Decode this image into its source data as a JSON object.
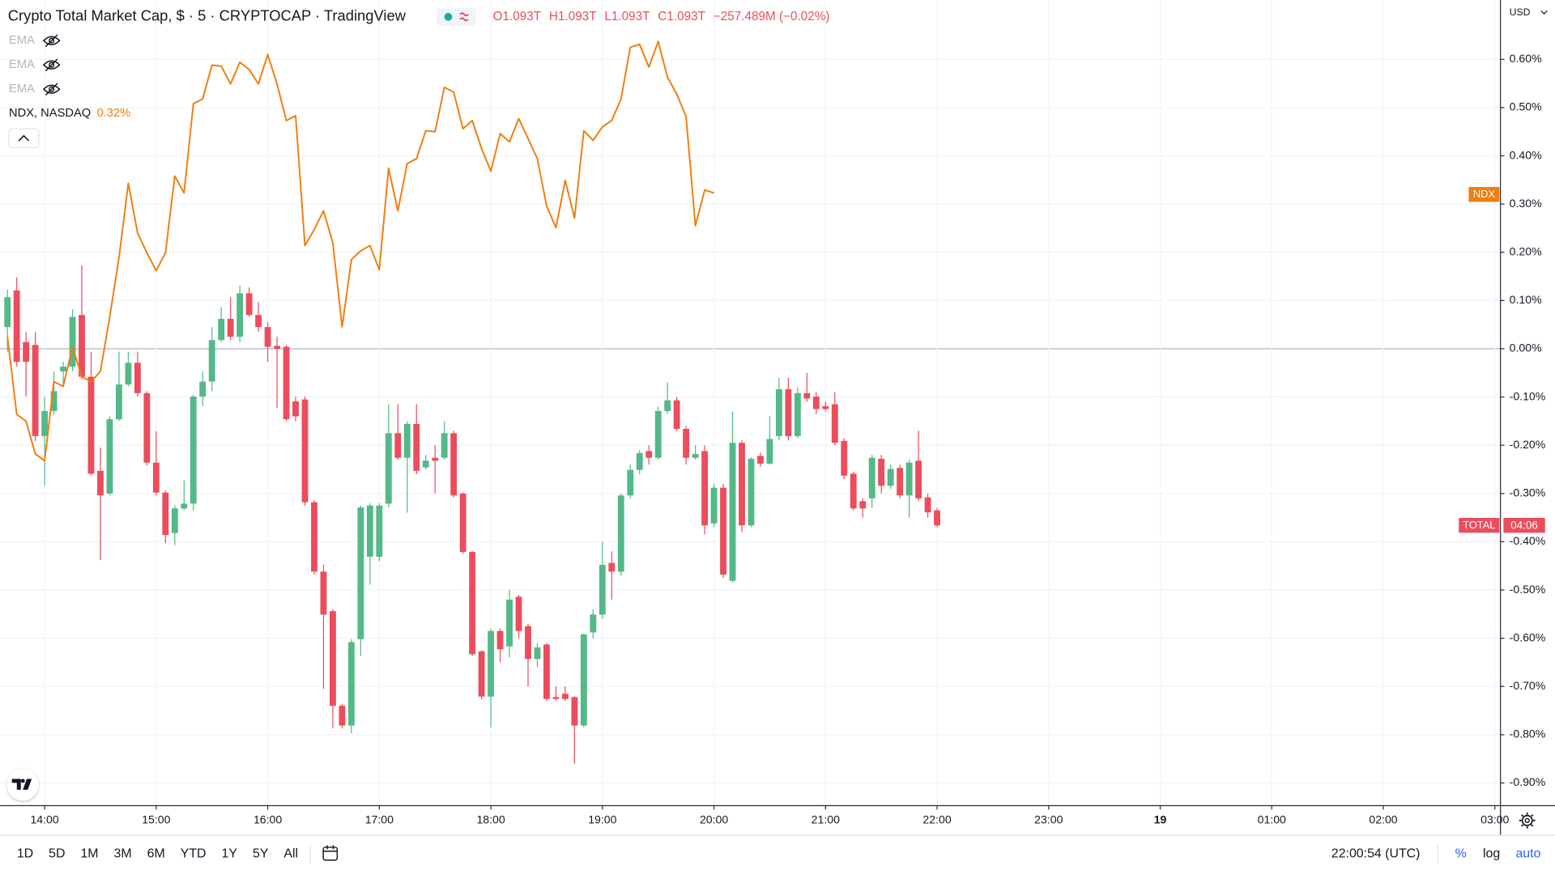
{
  "chart_data": {
    "type": "candlestick",
    "title": "Crypto Total Market Cap, $ · 5 · CRYPTOCAP · TradingView",
    "ohlc": [
      {
        "key": "O",
        "value": "1.093T"
      },
      {
        "key": "H",
        "value": "1.093T"
      },
      {
        "key": "L",
        "value": "1.093T"
      },
      {
        "key": "C",
        "value": "1.093T"
      }
    ],
    "change": "−257.489M (−0.02%)",
    "indicators": [
      "EMA",
      "EMA",
      "EMA"
    ],
    "currency": "USD",
    "symbol_tag": "TOTAL",
    "countdown": "04:06",
    "up_color": "#53b987",
    "down_color": "#eb4d5c",
    "percent_scale": true,
    "log_scale": false,
    "auto_scale": true,
    "grid": true,
    "x": [
      820,
      825,
      830,
      835,
      840,
      845,
      850,
      855,
      860,
      865,
      870,
      875,
      880,
      885,
      890,
      895,
      900,
      905,
      910,
      915,
      920,
      925,
      930,
      935,
      940,
      945,
      950,
      955,
      960,
      965,
      970,
      975,
      980,
      985,
      990,
      995,
      1000,
      1005,
      1010,
      1015,
      1020,
      1025,
      1030,
      1035,
      1040,
      1045,
      1050,
      1055,
      1060,
      1065,
      1070,
      1075,
      1080,
      1085,
      1090,
      1095,
      1100,
      1105,
      1110,
      1115,
      1120,
      1125,
      1130,
      1135,
      1140,
      1145,
      1150,
      1155,
      1160,
      1165,
      1170,
      1175,
      1180,
      1185,
      1190,
      1195,
      1200,
      1205,
      1210,
      1215,
      1220,
      1225,
      1230,
      1235,
      1240,
      1245,
      1250,
      1255,
      1260,
      1265,
      1270,
      1275,
      1280,
      1285,
      1290,
      1295,
      1300,
      1305,
      1310,
      1315,
      1320
    ],
    "candles": [
      [
        0.045,
        0.123,
        -0.006,
        0.107
      ],
      [
        0.121,
        0.148,
        -0.037,
        -0.027
      ],
      [
        0.014,
        0.035,
        -0.099,
        -0.027
      ],
      [
        0.008,
        0.035,
        -0.191,
        -0.181
      ],
      [
        -0.181,
        -0.099,
        -0.284,
        -0.129
      ],
      [
        -0.129,
        -0.047,
        -0.136,
        -0.088
      ],
      [
        -0.047,
        -0.027,
        -0.078,
        -0.037
      ],
      [
        -0.037,
        0.082,
        -0.047,
        0.066
      ],
      [
        0.07,
        0.173,
        -0.062,
        -0.058
      ],
      [
        -0.058,
        -0.006,
        -0.263,
        -0.259
      ],
      [
        -0.253,
        -0.205,
        -0.438,
        -0.304
      ],
      [
        -0.3,
        -0.14,
        -0.304,
        -0.146
      ],
      [
        -0.146,
        -0.006,
        -0.15,
        -0.074
      ],
      [
        -0.074,
        -0.006,
        -0.078,
        -0.029
      ],
      [
        -0.029,
        -0.006,
        -0.099,
        -0.092
      ],
      [
        -0.092,
        -0.088,
        -0.242,
        -0.236
      ],
      [
        -0.236,
        -0.171,
        -0.304,
        -0.298
      ],
      [
        -0.298,
        -0.294,
        -0.403,
        -0.386
      ],
      [
        -0.382,
        -0.325,
        -0.407,
        -0.331
      ],
      [
        -0.331,
        -0.273,
        -0.335,
        -0.321
      ],
      [
        -0.321,
        -0.095,
        -0.335,
        -0.099
      ],
      [
        -0.099,
        -0.047,
        -0.119,
        -0.068
      ],
      [
        -0.068,
        0.045,
        -0.088,
        0.018
      ],
      [
        0.018,
        0.086,
        0.014,
        0.062
      ],
      [
        0.062,
        0.107,
        0.018,
        0.025
      ],
      [
        0.025,
        0.131,
        0.014,
        0.115
      ],
      [
        0.115,
        0.127,
        0.066,
        0.07
      ],
      [
        0.07,
        0.097,
        0.035,
        0.045
      ],
      [
        0.045,
        0.055,
        -0.027,
        0.004
      ],
      [
        0.006,
        0.025,
        -0.123,
        0.0
      ],
      [
        0.004,
        0.008,
        -0.15,
        -0.146
      ],
      [
        -0.109,
        -0.099,
        -0.15,
        -0.14
      ],
      [
        -0.105,
        -0.099,
        -0.325,
        -0.318
      ],
      [
        -0.318,
        -0.314,
        -0.468,
        -0.462
      ],
      [
        -0.462,
        -0.448,
        -0.705,
        -0.551
      ],
      [
        -0.544,
        -0.54,
        -0.787,
        -0.74
      ],
      [
        -0.74,
        -0.736,
        -0.787,
        -0.781
      ],
      [
        -0.781,
        -0.602,
        -0.797,
        -0.608
      ],
      [
        -0.602,
        -0.325,
        -0.637,
        -0.329
      ],
      [
        -0.431,
        -0.32,
        -0.489,
        -0.325
      ],
      [
        -0.431,
        -0.32,
        -0.44,
        -0.325
      ],
      [
        -0.321,
        -0.115,
        -0.329,
        -0.175
      ],
      [
        -0.175,
        -0.115,
        -0.23,
        -0.226
      ],
      [
        -0.226,
        -0.15,
        -0.34,
        -0.156
      ],
      [
        -0.156,
        -0.115,
        -0.26,
        -0.253
      ],
      [
        -0.246,
        -0.22,
        -0.25,
        -0.232
      ],
      [
        -0.226,
        -0.2,
        -0.3,
        -0.232
      ],
      [
        -0.226,
        -0.15,
        -0.23,
        -0.175
      ],
      [
        -0.175,
        -0.17,
        -0.308,
        -0.304
      ],
      [
        -0.3,
        -0.298,
        -0.425,
        -0.421
      ],
      [
        -0.421,
        -0.419,
        -0.637,
        -0.633
      ],
      [
        -0.627,
        -0.625,
        -0.727,
        -0.721
      ],
      [
        -0.721,
        -0.58,
        -0.785,
        -0.585
      ],
      [
        -0.585,
        -0.58,
        -0.65,
        -0.623
      ],
      [
        -0.617,
        -0.5,
        -0.64,
        -0.52
      ],
      [
        -0.514,
        -0.51,
        -0.6,
        -0.585
      ],
      [
        -0.575,
        -0.57,
        -0.7,
        -0.643
      ],
      [
        -0.643,
        -0.61,
        -0.66,
        -0.619
      ],
      [
        -0.613,
        -0.61,
        -0.73,
        -0.726
      ],
      [
        -0.722,
        -0.7,
        -0.73,
        -0.726
      ],
      [
        -0.715,
        -0.7,
        -0.73,
        -0.726
      ],
      [
        -0.722,
        -0.72,
        -0.86,
        -0.781
      ],
      [
        -0.781,
        -0.59,
        -0.785,
        -0.592
      ],
      [
        -0.588,
        -0.54,
        -0.6,
        -0.551
      ],
      [
        -0.551,
        -0.4,
        -0.56,
        -0.448
      ],
      [
        -0.444,
        -0.42,
        -0.52,
        -0.462
      ],
      [
        -0.462,
        -0.3,
        -0.47,
        -0.304
      ],
      [
        -0.304,
        -0.24,
        -0.31,
        -0.251
      ],
      [
        -0.251,
        -0.21,
        -0.26,
        -0.216
      ],
      [
        -0.212,
        -0.2,
        -0.24,
        -0.226
      ],
      [
        -0.226,
        -0.12,
        -0.23,
        -0.129
      ],
      [
        -0.129,
        -0.07,
        -0.135,
        -0.107
      ],
      [
        -0.107,
        -0.1,
        -0.17,
        -0.166
      ],
      [
        -0.166,
        -0.16,
        -0.24,
        -0.226
      ],
      [
        -0.226,
        -0.2,
        -0.23,
        -0.218
      ],
      [
        -0.212,
        -0.2,
        -0.385,
        -0.366
      ],
      [
        -0.362,
        -0.28,
        -0.37,
        -0.288
      ],
      [
        -0.288,
        -0.28,
        -0.475,
        -0.468
      ],
      [
        -0.481,
        -0.13,
        -0.485,
        -0.195
      ],
      [
        -0.195,
        -0.19,
        -0.38,
        -0.366
      ],
      [
        -0.366,
        -0.225,
        -0.37,
        -0.228
      ],
      [
        -0.222,
        -0.215,
        -0.245,
        -0.238
      ],
      [
        -0.238,
        -0.14,
        -0.24,
        -0.187
      ],
      [
        -0.181,
        -0.06,
        -0.19,
        -0.084
      ],
      [
        -0.084,
        -0.06,
        -0.19,
        -0.181
      ],
      [
        -0.181,
        -0.08,
        -0.185,
        -0.092
      ],
      [
        -0.092,
        -0.05,
        -0.11,
        -0.103
      ],
      [
        -0.099,
        -0.09,
        -0.135,
        -0.125
      ],
      [
        -0.119,
        -0.11,
        -0.13,
        -0.125
      ],
      [
        -0.115,
        -0.09,
        -0.2,
        -0.195
      ],
      [
        -0.191,
        -0.185,
        -0.27,
        -0.263
      ],
      [
        -0.259,
        -0.255,
        -0.335,
        -0.331
      ],
      [
        -0.316,
        -0.31,
        -0.35,
        -0.331
      ],
      [
        -0.31,
        -0.22,
        -0.33,
        -0.226
      ],
      [
        -0.228,
        -0.22,
        -0.3,
        -0.284
      ],
      [
        -0.284,
        -0.24,
        -0.29,
        -0.249
      ],
      [
        -0.247,
        -0.24,
        -0.31,
        -0.304
      ],
      [
        -0.304,
        -0.23,
        -0.35,
        -0.236
      ],
      [
        -0.232,
        -0.17,
        -0.315,
        -0.31
      ],
      [
        -0.308,
        -0.3,
        -0.35,
        -0.339
      ],
      [
        -0.335,
        -0.33,
        -0.37,
        -0.366
      ]
    ],
    "series": [
      {
        "name": "NDX, NASDAQ",
        "tag": "NDX",
        "type": "line",
        "color": "#f07d0e",
        "last_value": {
          "value": 0.32,
          "label": "0.32%"
        },
        "values": [
          0.025,
          -0.136,
          -0.15,
          -0.218,
          -0.232,
          -0.068,
          -0.078,
          0.004,
          -0.058,
          -0.068,
          -0.047,
          0.066,
          0.189,
          0.343,
          0.24,
          0.199,
          0.162,
          0.199,
          0.358,
          0.323,
          0.508,
          0.518,
          0.588,
          0.586,
          0.549,
          0.594,
          0.579,
          0.549,
          0.61,
          0.549,
          0.473,
          0.483,
          0.214,
          0.247,
          0.286,
          0.22,
          0.045,
          0.185,
          0.203,
          0.214,
          0.164,
          0.374,
          0.286,
          0.384,
          0.394,
          0.452,
          0.45,
          0.542,
          0.532,
          0.456,
          0.473,
          0.415,
          0.368,
          0.446,
          0.429,
          0.477,
          0.436,
          0.394,
          0.296,
          0.251,
          0.349,
          0.271,
          0.452,
          0.432,
          0.46,
          0.473,
          0.518,
          0.625,
          0.631,
          0.584,
          0.637,
          0.563,
          0.528,
          0.481,
          0.255,
          0.329,
          0.323,
          null,
          null,
          null,
          null,
          null,
          null,
          null,
          null,
          null,
          null,
          null,
          null,
          null,
          null,
          null,
          null,
          null,
          null,
          null,
          null,
          null,
          null,
          null,
          null
        ]
      }
    ],
    "xlim": [
      816,
      1623
    ],
    "xticks": [
      {
        "value": 840,
        "label": "14:00"
      },
      {
        "value": 900,
        "label": "15:00"
      },
      {
        "value": 960,
        "label": "16:00"
      },
      {
        "value": 1020,
        "label": "17:00"
      },
      {
        "value": 1080,
        "label": "18:00"
      },
      {
        "value": 1140,
        "label": "19:00"
      },
      {
        "value": 1200,
        "label": "20:00"
      },
      {
        "value": 1260,
        "label": "21:00"
      },
      {
        "value": 1320,
        "label": "22:00"
      },
      {
        "value": 1380,
        "label": "23:00"
      },
      {
        "value": 1440,
        "label": "19"
      },
      {
        "value": 1500,
        "label": "01:00"
      },
      {
        "value": 1560,
        "label": "02:00"
      },
      {
        "value": 1620,
        "label": "03:00"
      }
    ],
    "ylim": [
      -0.947,
      0.723
    ],
    "yticks": [
      {
        "value": 0.6,
        "label": "0.60%"
      },
      {
        "value": 0.5,
        "label": "0.50%"
      },
      {
        "value": 0.4,
        "label": "0.40%"
      },
      {
        "value": 0.3,
        "label": "0.30%"
      },
      {
        "value": 0.2,
        "label": "0.20%"
      },
      {
        "value": 0.1,
        "label": "0.10%"
      },
      {
        "value": 0,
        "label": "0.00%"
      },
      {
        "value": -0.1,
        "label": "-0.10%"
      },
      {
        "value": -0.2,
        "label": "-0.20%"
      },
      {
        "value": -0.3,
        "label": "-0.30%"
      },
      {
        "value": -0.4,
        "label": "-0.40%"
      },
      {
        "value": -0.5,
        "label": "-0.50%"
      },
      {
        "value": -0.6,
        "label": "-0.60%"
      },
      {
        "value": -0.7,
        "label": "-0.70%"
      },
      {
        "value": -0.8,
        "label": "-0.80%"
      },
      {
        "value": -0.9,
        "label": "-0.90%"
      }
    ]
  },
  "toolbar": {
    "ranges": [
      "1D",
      "5D",
      "1M",
      "3M",
      "6M",
      "YTD",
      "1Y",
      "5Y",
      "All"
    ],
    "clock": "22:00:54 (UTC)",
    "scale_buttons": [
      "%",
      "log",
      "auto"
    ]
  }
}
